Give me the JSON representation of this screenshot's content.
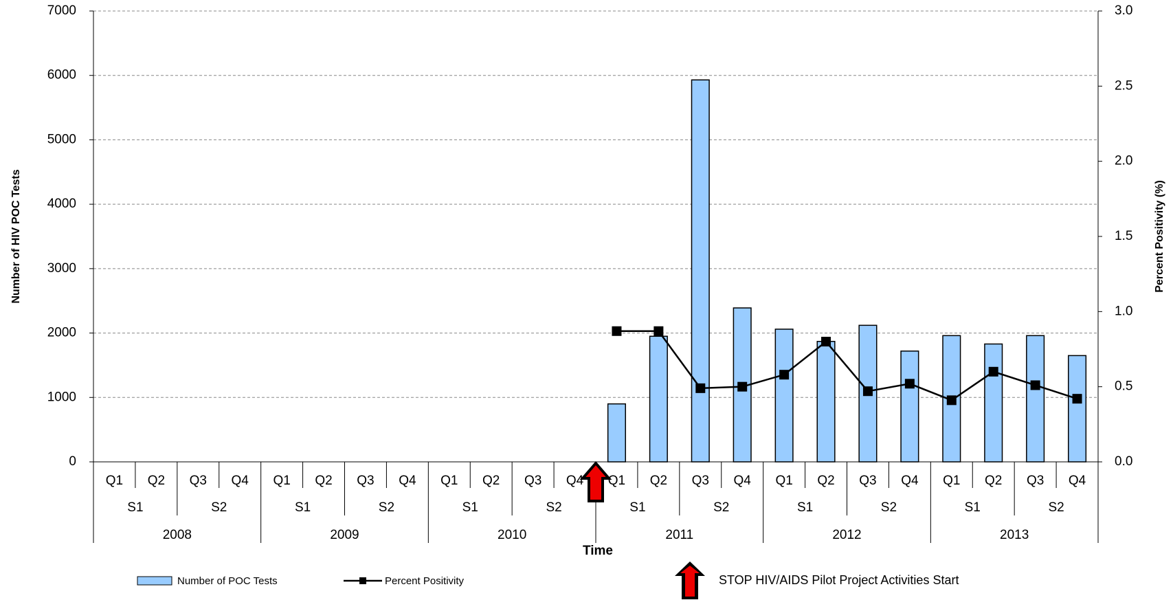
{
  "chart_data": {
    "type": "bar-line",
    "y_label": "Number of HIV POC Tests",
    "y2_label": "Percent Positivity (%)",
    "x_label": "Time",
    "categories": [
      "Q1",
      "Q2",
      "Q3",
      "Q4",
      "Q1",
      "Q2",
      "Q3",
      "Q4",
      "Q1",
      "Q2",
      "Q3",
      "Q4",
      "Q1",
      "Q2",
      "Q3",
      "Q4",
      "Q1",
      "Q2",
      "Q3",
      "Q4",
      "Q1",
      "Q2",
      "Q3",
      "Q4"
    ],
    "semesters": [
      "S1",
      "S2",
      "S1",
      "S2",
      "S1",
      "S2",
      "S1",
      "S2",
      "S1",
      "S2",
      "S1",
      "S2"
    ],
    "years": [
      "2008",
      "2009",
      "2010",
      "2011",
      "2012",
      "2013"
    ],
    "series": [
      {
        "name": "Number of POC Tests",
        "color": "#99ccff",
        "type": "bar",
        "values": [
          null,
          null,
          null,
          null,
          null,
          null,
          null,
          null,
          null,
          null,
          null,
          null,
          900,
          1950,
          5930,
          2390,
          2060,
          1870,
          2120,
          1720,
          1960,
          1830,
          1960,
          1650
        ]
      },
      {
        "name": "Percent Positivity",
        "color": "#000000",
        "type": "line",
        "axis": "y2",
        "values": [
          null,
          null,
          null,
          null,
          null,
          null,
          null,
          null,
          null,
          null,
          null,
          null,
          0.87,
          0.87,
          0.49,
          0.5,
          0.58,
          0.8,
          0.47,
          0.52,
          0.41,
          0.6,
          0.51,
          0.42
        ]
      }
    ],
    "ylim": [
      0,
      7000
    ],
    "yticks": [
      0,
      1000,
      2000,
      3000,
      4000,
      5000,
      6000,
      7000
    ],
    "y2lim": [
      0,
      3
    ],
    "y2ticks": [
      {
        "value": 0,
        "label": "0.0"
      },
      0.5,
      {
        "value": 1,
        "label": "1.0"
      },
      1.5,
      {
        "value": 2,
        "label": "2.0"
      },
      2.5,
      {
        "value": 3,
        "label": "3.0"
      }
    ],
    "grid": true,
    "annotation": "STOP HIV/AIDS Pilot Project Activities Start"
  }
}
